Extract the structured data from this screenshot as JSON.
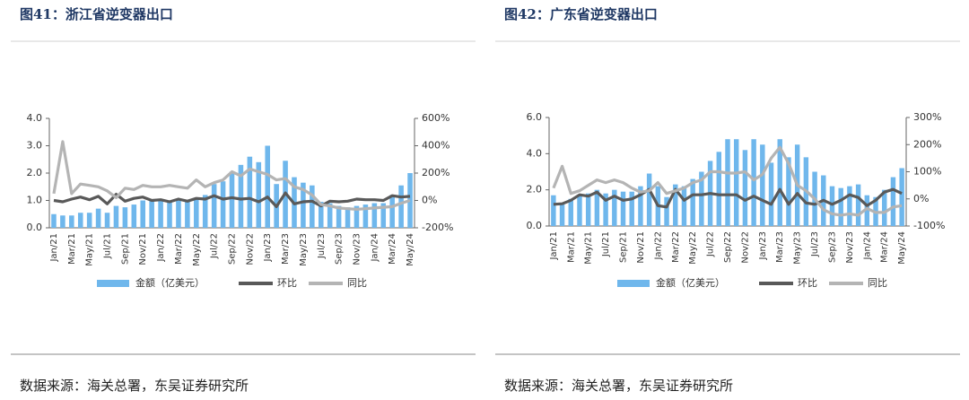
{
  "chart_data": [
    {
      "type": "bar",
      "title": "图41：浙江省逆变器出口",
      "source": "数据来源：海关总署，东吴证券研究所",
      "categories": [
        "Jan/21",
        null,
        "Mar/21",
        null,
        "May/21",
        null,
        "Jul/21",
        null,
        "Sep/21",
        null,
        "Nov/21",
        null,
        "Jan/22",
        null,
        "Mar/22",
        null,
        "May/22",
        null,
        "Jul/22",
        null,
        "Sep/22",
        null,
        "Nov/22",
        null,
        "Jan/23",
        null,
        "Mar/23",
        null,
        "May/23",
        null,
        "Jul/23",
        null,
        "Sep/23",
        null,
        "Nov/23",
        null,
        "Jan/24",
        null,
        "Mar/24",
        null,
        "May/24"
      ],
      "series": [
        {
          "name": "金额（亿美元）",
          "type": "bar",
          "color": "#6fb7ec",
          "values": [
            0.5,
            0.45,
            0.45,
            0.55,
            0.55,
            0.7,
            0.55,
            0.8,
            0.75,
            0.85,
            1.0,
            1.0,
            1.0,
            0.95,
            1.0,
            0.95,
            1.1,
            1.2,
            1.6,
            1.7,
            2.05,
            2.3,
            2.6,
            2.4,
            3.0,
            1.6,
            2.45,
            1.85,
            1.65,
            1.55,
            0.95,
            0.9,
            0.8,
            0.75,
            0.8,
            0.85,
            0.9,
            0.9,
            1.2,
            1.55,
            2.0
          ]
        },
        {
          "name": "环比",
          "type": "line",
          "axis": "y2",
          "color": "#595959",
          "values": [
            0,
            -10,
            10,
            25,
            5,
            30,
            -25,
            45,
            -5,
            15,
            25,
            0,
            5,
            -10,
            10,
            -5,
            15,
            10,
            35,
            10,
            20,
            10,
            15,
            -10,
            25,
            -45,
            55,
            -25,
            -10,
            -5,
            -40,
            -5,
            -10,
            -5,
            10,
            5,
            5,
            0,
            35,
            25,
            30
          ]
        },
        {
          "name": "同比",
          "type": "line",
          "axis": "y2",
          "color": "#b4b4b4",
          "values": [
            50,
            430,
            50,
            120,
            110,
            100,
            70,
            20,
            90,
            80,
            110,
            100,
            100,
            110,
            100,
            90,
            150,
            100,
            130,
            150,
            210,
            180,
            230,
            210,
            190,
            150,
            160,
            100,
            80,
            40,
            -30,
            -40,
            -55,
            -60,
            -65,
            -60,
            -55,
            -50,
            -45,
            -20,
            0
          ]
        }
      ],
      "ylim": [
        0,
        4
      ],
      "yticks": [
        {
          "value": 0,
          "label": "0.0"
        },
        {
          "value": 1,
          "label": "1.0"
        },
        {
          "value": 2,
          "label": "2.0"
        },
        {
          "value": 3,
          "label": "3.0"
        },
        {
          "value": 4,
          "label": "4.0"
        }
      ],
      "y2lim": [
        -200,
        600
      ],
      "y2ticks": [
        {
          "value": -200,
          "label": "-200%"
        },
        {
          "value": 0,
          "label": "0%"
        },
        {
          "value": 200,
          "label": "200%"
        },
        {
          "value": 400,
          "label": "400%"
        },
        {
          "value": 600,
          "label": "600%"
        }
      ]
    },
    {
      "type": "bar",
      "title": "图42：广东省逆变器出口",
      "source": "数据来源：海关总署，东吴证券研究所",
      "categories": [
        "Jan/21",
        null,
        "Mar/21",
        null,
        "May/21",
        null,
        "Jul/21",
        null,
        "Sep/21",
        null,
        "Nov/21",
        null,
        "Jan/22",
        null,
        "Mar/22",
        null,
        "May/22",
        null,
        "Jul/22",
        null,
        "Sep/22",
        null,
        "Nov/22",
        null,
        "Jan/23",
        null,
        "Mar/23",
        null,
        "May/23",
        null,
        "Jul/23",
        null,
        "Sep/23",
        null,
        "Nov/23",
        null,
        "Jan/24",
        null,
        "Mar/24",
        null,
        "May/24"
      ],
      "series": [
        {
          "name": "金额（亿美元）",
          "type": "bar",
          "color": "#6fb7ec",
          "values": [
            1.7,
            1.2,
            1.5,
            1.7,
            1.8,
            2.0,
            1.8,
            2.0,
            1.9,
            1.9,
            2.2,
            2.9,
            2.2,
            1.6,
            2.3,
            2.2,
            2.6,
            3.0,
            3.6,
            4.1,
            4.8,
            4.8,
            4.2,
            4.8,
            4.5,
            3.5,
            4.8,
            3.8,
            4.5,
            3.8,
            3.0,
            2.8,
            2.2,
            2.1,
            2.2,
            2.3,
            1.7,
            1.6,
            2.0,
            2.7,
            3.2
          ]
        },
        {
          "name": "环比",
          "type": "line",
          "axis": "y2",
          "color": "#595959",
          "values": [
            -20,
            -18,
            -5,
            15,
            10,
            25,
            -5,
            10,
            -5,
            0,
            15,
            35,
            -25,
            -30,
            35,
            -5,
            15,
            15,
            20,
            15,
            15,
            15,
            -5,
            10,
            -5,
            -20,
            35,
            -20,
            20,
            -15,
            -20,
            -5,
            -20,
            -5,
            15,
            5,
            -25,
            -5,
            25,
            35,
            20
          ]
        },
        {
          "name": "同比",
          "type": "line",
          "axis": "y2",
          "color": "#b4b4b4",
          "values": [
            40,
            120,
            20,
            30,
            50,
            70,
            60,
            70,
            60,
            40,
            25,
            30,
            60,
            20,
            30,
            40,
            60,
            70,
            100,
            100,
            95,
            95,
            100,
            70,
            90,
            150,
            190,
            130,
            50,
            30,
            0,
            -40,
            -55,
            -60,
            -55,
            -60,
            -35,
            -50,
            -50,
            -30,
            -25
          ]
        }
      ],
      "ylim": [
        0,
        6
      ],
      "yticks": [
        {
          "value": 0,
          "label": "0.0"
        },
        {
          "value": 2,
          "label": "2.0"
        },
        {
          "value": 4,
          "label": "4.0"
        },
        {
          "value": 6,
          "label": "6.0"
        }
      ],
      "y2lim": [
        -100,
        300
      ],
      "y2ticks": [
        {
          "value": -100,
          "label": "-100%"
        },
        {
          "value": 0,
          "label": "0%"
        },
        {
          "value": 100,
          "label": "100%"
        },
        {
          "value": 200,
          "label": "200%"
        },
        {
          "value": 300,
          "label": "300%"
        }
      ]
    }
  ]
}
